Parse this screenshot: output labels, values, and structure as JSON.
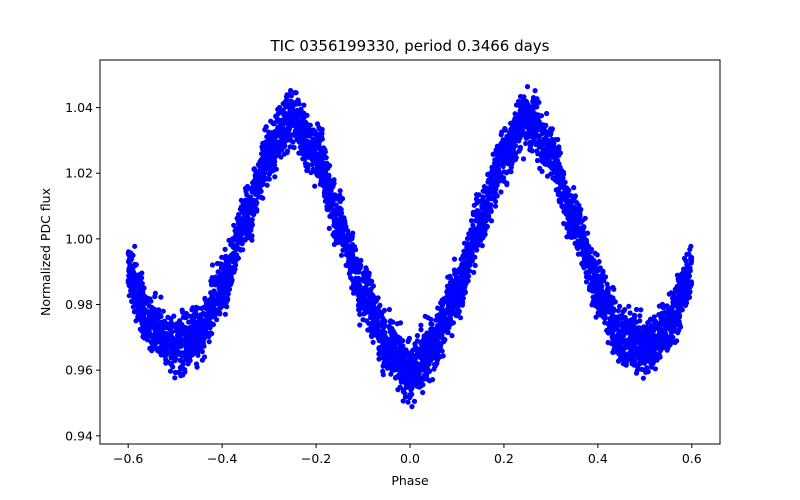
{
  "chart_data": {
    "type": "scatter",
    "title": "TIC 0356199330, period 0.3466 days",
    "xlabel": "Phase",
    "ylabel": "Normalized PDC flux",
    "xlim": [
      -0.66,
      0.66
    ],
    "ylim": [
      0.9375,
      1.0545
    ],
    "xticks": [
      -0.6,
      -0.4,
      -0.2,
      0.0,
      0.2,
      0.4,
      0.6
    ],
    "xtick_labels": [
      "−0.6",
      "−0.4",
      "−0.2",
      "0.0",
      "0.2",
      "0.4",
      "0.6"
    ],
    "yticks": [
      0.94,
      0.96,
      0.98,
      1.0,
      1.02,
      1.04
    ],
    "ytick_labels": [
      "0.94",
      "0.96",
      "0.98",
      "1.00",
      "1.02",
      "1.04"
    ],
    "grid": false,
    "legend": "none",
    "series": [
      {
        "name": "TIC 0356199330",
        "color": "#0000ff",
        "marker": "circle",
        "phase_range": [
          -0.6,
          0.6
        ],
        "model_curve": {
          "x": [
            -0.6,
            -0.55,
            -0.5,
            -0.45,
            -0.4,
            -0.35,
            -0.3,
            -0.25,
            -0.2,
            -0.15,
            -0.1,
            -0.05,
            0.0,
            0.05,
            0.1,
            0.15,
            0.2,
            0.25,
            0.3,
            0.35,
            0.4,
            0.45,
            0.5,
            0.55,
            0.6
          ],
          "y": [
            0.99,
            0.973,
            0.967,
            0.971,
            0.985,
            1.006,
            1.026,
            1.037,
            1.026,
            1.005,
            0.984,
            0.968,
            0.959,
            0.968,
            0.984,
            1.005,
            1.026,
            1.037,
            1.026,
            1.006,
            0.985,
            0.971,
            0.967,
            0.973,
            0.99
          ]
        },
        "scatter_halfwidth": 0.009,
        "n_points_rendered": 5000
      }
    ]
  }
}
